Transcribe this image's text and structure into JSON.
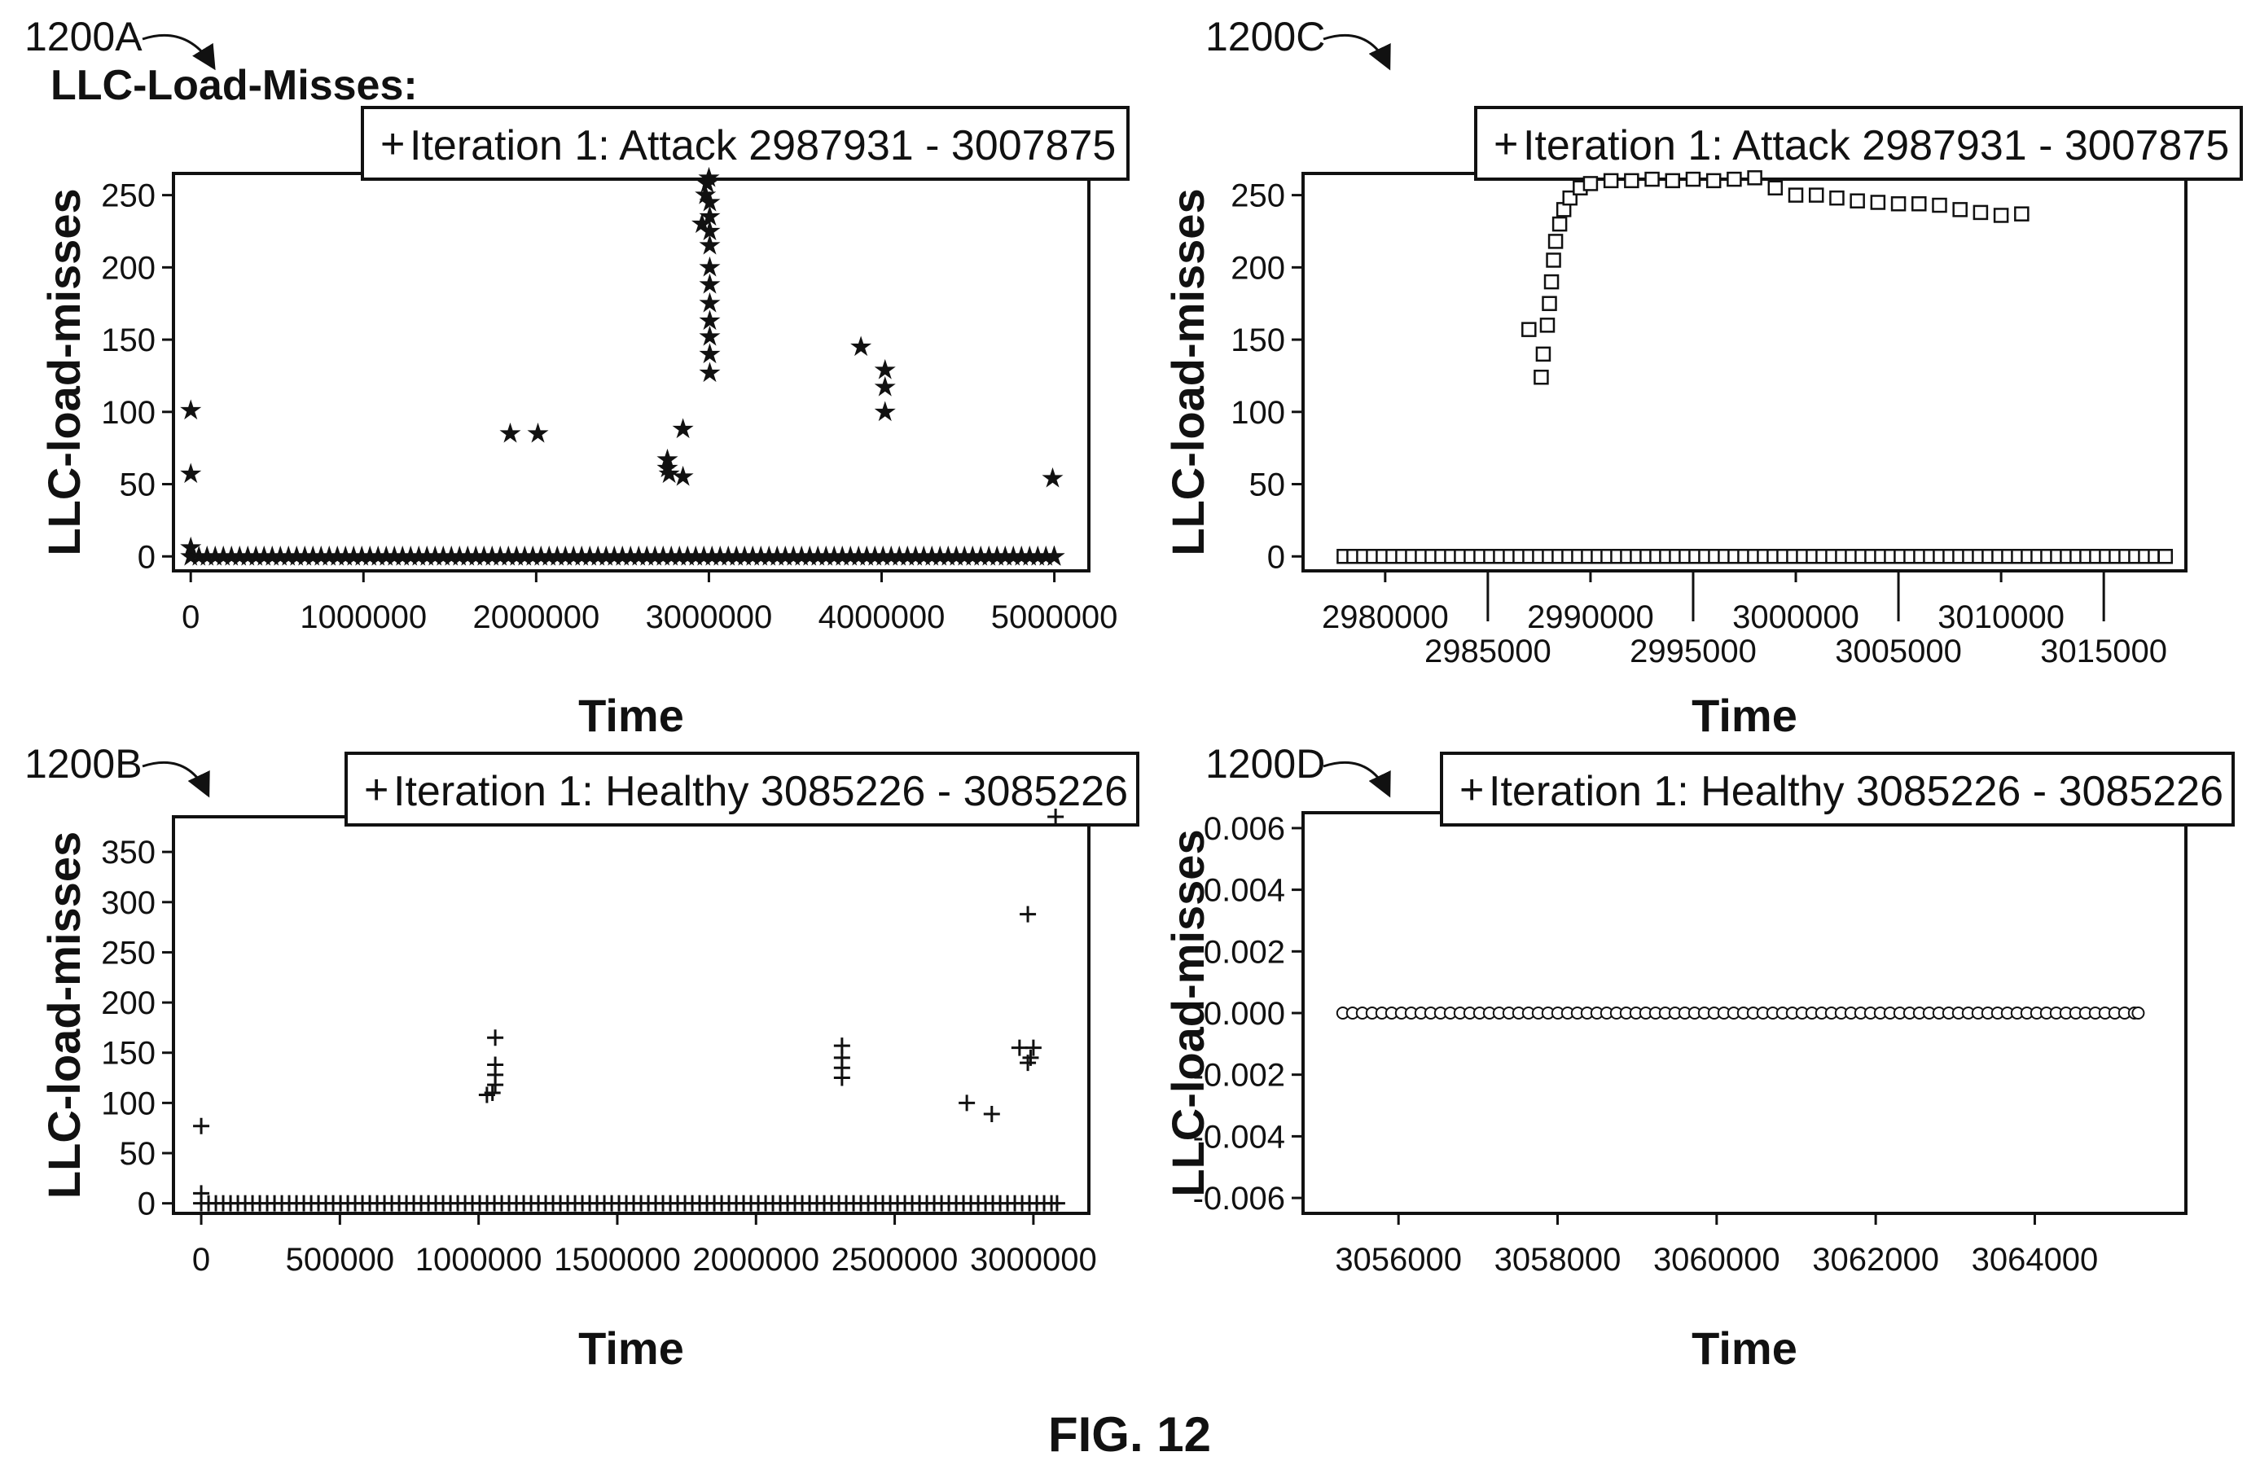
{
  "figure": {
    "caption": "FIG. 12",
    "section_title": "LLC-Load-Misses:"
  },
  "chart_data": [
    {
      "id": "1200A",
      "ref_label": "1200A",
      "type": "scatter",
      "legend": "Iteration 1: Attack 2987931 - 3007875",
      "legend_marker": "+",
      "marker": "star",
      "xlabel": "Time",
      "ylabel": "LLC-load-misses",
      "xlim": [
        -100000,
        5200000
      ],
      "ylim": [
        -10,
        265
      ],
      "xticks": [
        0,
        1000000,
        2000000,
        3000000,
        4000000,
        5000000
      ],
      "xtick_labels": [
        "0",
        "1000000",
        "2000000",
        "3000000",
        "4000000",
        "5000000"
      ],
      "yticks": [
        0,
        50,
        100,
        150,
        200,
        250
      ],
      "ytick_labels": [
        "0",
        "50",
        "100",
        "150",
        "200",
        "250"
      ],
      "baseline": {
        "from": 0,
        "to": 5000000,
        "y": 0
      },
      "points": [
        [
          0,
          101
        ],
        [
          0,
          57
        ],
        [
          0,
          6
        ],
        [
          1850000,
          85
        ],
        [
          2010000,
          85
        ],
        [
          2760000,
          67
        ],
        [
          2760000,
          61
        ],
        [
          2770000,
          57
        ],
        [
          2850000,
          55
        ],
        [
          2850000,
          88
        ],
        [
          2960000,
          230
        ],
        [
          2980000,
          250
        ],
        [
          2990000,
          258
        ],
        [
          3000000,
          262
        ],
        [
          3005000,
          245
        ],
        [
          3005000,
          235
        ],
        [
          3005000,
          225
        ],
        [
          3005000,
          215
        ],
        [
          3005000,
          200
        ],
        [
          3005000,
          188
        ],
        [
          3005000,
          175
        ],
        [
          3005000,
          163
        ],
        [
          3005000,
          152
        ],
        [
          3005000,
          140
        ],
        [
          3005000,
          127
        ],
        [
          3880000,
          145
        ],
        [
          4020000,
          129
        ],
        [
          4020000,
          117
        ],
        [
          4020000,
          100
        ],
        [
          4990000,
          54
        ]
      ]
    },
    {
      "id": "1200C",
      "ref_label": "1200C",
      "type": "scatter",
      "legend": "Iteration 1: Attack 2987931 - 3007875",
      "legend_marker": "+",
      "marker": "square",
      "xlabel": "Time",
      "ylabel": "LLC-load-misses",
      "xlim": [
        2976000,
        3019000
      ],
      "ylim": [
        -10,
        265
      ],
      "xticks": [
        2980000,
        2985000,
        2990000,
        2995000,
        3000000,
        3005000,
        3010000,
        3015000
      ],
      "xtick_labels": [
        "2980000",
        "2985000",
        "2990000",
        "2995000",
        "3000000",
        "3005000",
        "3010000",
        "3015000"
      ],
      "yticks": [
        0,
        50,
        100,
        150,
        200,
        250
      ],
      "ytick_labels": [
        "0",
        "50",
        "100",
        "150",
        "200",
        "250"
      ],
      "baseline": {
        "from": 2978000,
        "to": 3018000,
        "y": 0
      },
      "points": [
        [
          2987000,
          157
        ],
        [
          2987600,
          124
        ],
        [
          2987700,
          140
        ],
        [
          2987900,
          160
        ],
        [
          2988000,
          175
        ],
        [
          2988100,
          190
        ],
        [
          2988200,
          205
        ],
        [
          2988300,
          218
        ],
        [
          2988500,
          230
        ],
        [
          2988700,
          240
        ],
        [
          2989000,
          248
        ],
        [
          2989500,
          255
        ],
        [
          2990000,
          258
        ],
        [
          2991000,
          260
        ],
        [
          2992000,
          260
        ],
        [
          2993000,
          261
        ],
        [
          2994000,
          260
        ],
        [
          2995000,
          261
        ],
        [
          2996000,
          260
        ],
        [
          2997000,
          261
        ],
        [
          2998000,
          262
        ],
        [
          2999000,
          255
        ],
        [
          3000000,
          250
        ],
        [
          3001000,
          250
        ],
        [
          3002000,
          248
        ],
        [
          3003000,
          246
        ],
        [
          3004000,
          245
        ],
        [
          3005000,
          244
        ],
        [
          3006000,
          244
        ],
        [
          3007000,
          243
        ],
        [
          3008000,
          240
        ],
        [
          3009000,
          238
        ],
        [
          3010000,
          236
        ],
        [
          3011000,
          237
        ]
      ]
    },
    {
      "id": "1200B",
      "ref_label": "1200B",
      "type": "scatter",
      "legend": "Iteration 1: Healthy 3085226 - 3085226",
      "legend_marker": "+",
      "marker": "plus",
      "xlabel": "Time",
      "ylabel": "LLC-load-misses",
      "xlim": [
        -100000,
        3200000
      ],
      "ylim": [
        -10,
        385
      ],
      "xticks": [
        0,
        500000,
        1000000,
        1500000,
        2000000,
        2500000,
        3000000
      ],
      "xtick_labels": [
        "0",
        "500000",
        "1000000",
        "1500000",
        "2000000",
        "2500000",
        "3000000"
      ],
      "yticks": [
        0,
        50,
        100,
        150,
        200,
        250,
        300,
        350
      ],
      "ytick_labels": [
        "0",
        "50",
        "100",
        "150",
        "200",
        "250",
        "300",
        "350"
      ],
      "baseline": {
        "from": 0,
        "to": 3085226,
        "y": 0
      },
      "points": [
        [
          0,
          77
        ],
        [
          0,
          10
        ],
        [
          1030000,
          108
        ],
        [
          1050000,
          110
        ],
        [
          1060000,
          118
        ],
        [
          1060000,
          128
        ],
        [
          1060000,
          138
        ],
        [
          1060000,
          165
        ],
        [
          2310000,
          125
        ],
        [
          2310000,
          135
        ],
        [
          2310000,
          145
        ],
        [
          2310000,
          157
        ],
        [
          2760000,
          100
        ],
        [
          2850000,
          89
        ],
        [
          2950000,
          155
        ],
        [
          2980000,
          140
        ],
        [
          2980000,
          288
        ],
        [
          2990000,
          145
        ],
        [
          3000000,
          155
        ],
        [
          3080000,
          385
        ]
      ]
    },
    {
      "id": "1200D",
      "ref_label": "1200D",
      "type": "scatter",
      "legend": "Iteration 1: Healthy 3085226 - 3085226",
      "legend_marker": "+",
      "marker": "circle",
      "xlabel": "Time",
      "ylabel": "LLC-load-misses",
      "xlim": [
        3054800,
        3065900
      ],
      "ylim": [
        -0.0065,
        0.0065
      ],
      "xticks": [
        3056000,
        3058000,
        3060000,
        3062000,
        3064000
      ],
      "xtick_labels": [
        "3056000",
        "3058000",
        "3060000",
        "3062000",
        "3064000"
      ],
      "yticks": [
        -0.006,
        -0.004,
        -0.002,
        0.0,
        0.002,
        0.004,
        0.006
      ],
      "ytick_labels": [
        "-0.006",
        "-0.004",
        "-0.002",
        "0.000",
        "0.002",
        "0.004",
        "0.006"
      ],
      "baseline": {
        "from": 3055300,
        "to": 3065300,
        "y": 0
      },
      "points": []
    }
  ]
}
